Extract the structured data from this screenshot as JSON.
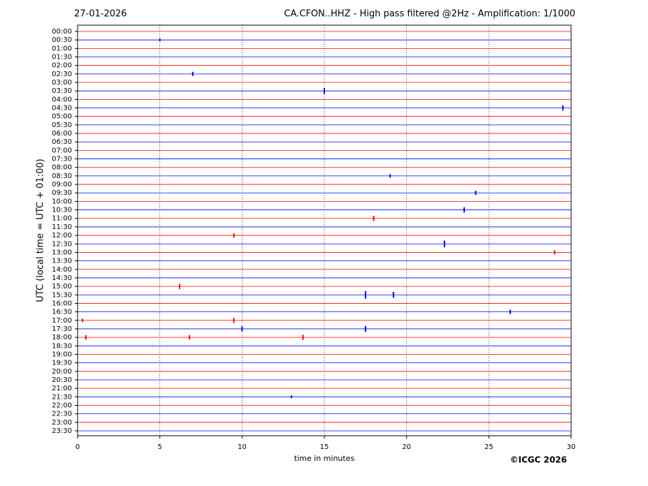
{
  "chart_data": {
    "type": "helicorder",
    "title_left": "27-01-2026",
    "title": "CA.CFON..HHZ - High pass filtered @2Hz - Amplification: 1/1000",
    "ylabel": "UTC (local time = UTC + 01:00)",
    "xlabel": "time in minutes",
    "copyright": "©ICGC 2026",
    "xlim": [
      0,
      30
    ],
    "xticks": [
      0,
      5,
      10,
      15,
      20,
      25,
      30
    ],
    "grid": true,
    "colors": [
      "#ff0000",
      "#0000ff"
    ],
    "categories": [
      "00:00",
      "00:30",
      "01:00",
      "01:30",
      "02:00",
      "02:30",
      "03:00",
      "03:30",
      "04:00",
      "04:30",
      "05:00",
      "05:30",
      "06:00",
      "06:30",
      "07:00",
      "07:30",
      "08:00",
      "08:30",
      "09:00",
      "09:30",
      "10:00",
      "10:30",
      "11:00",
      "11:30",
      "12:00",
      "12:30",
      "13:00",
      "13:30",
      "14:00",
      "14:30",
      "15:00",
      "15:30",
      "16:00",
      "16:30",
      "17:00",
      "17:30",
      "18:00",
      "18:30",
      "19:00",
      "19:30",
      "20:00",
      "20:30",
      "21:00",
      "21:30",
      "22:00",
      "22:30",
      "23:00",
      "23:30"
    ],
    "events": {
      "row": [
        1,
        5,
        7,
        9,
        17,
        19,
        21,
        22,
        24,
        25,
        26,
        30,
        31,
        31,
        33,
        34,
        34,
        35,
        35,
        36,
        36,
        36,
        43
      ],
      "x": [
        5.0,
        7.0,
        15.0,
        29.5,
        19.0,
        24.2,
        23.5,
        18.0,
        9.5,
        22.3,
        29.0,
        6.2,
        17.5,
        19.2,
        26.3,
        9.5,
        0.3,
        17.5,
        10.0,
        13.7,
        0.5,
        6.8,
        13.0
      ],
      "amplitude": [
        0.15,
        0.25,
        0.35,
        0.3,
        0.2,
        0.25,
        0.3,
        0.3,
        0.25,
        0.4,
        0.25,
        0.3,
        0.45,
        0.35,
        0.25,
        0.3,
        0.2,
        0.35,
        0.3,
        0.3,
        0.25,
        0.25,
        0.15
      ]
    }
  }
}
